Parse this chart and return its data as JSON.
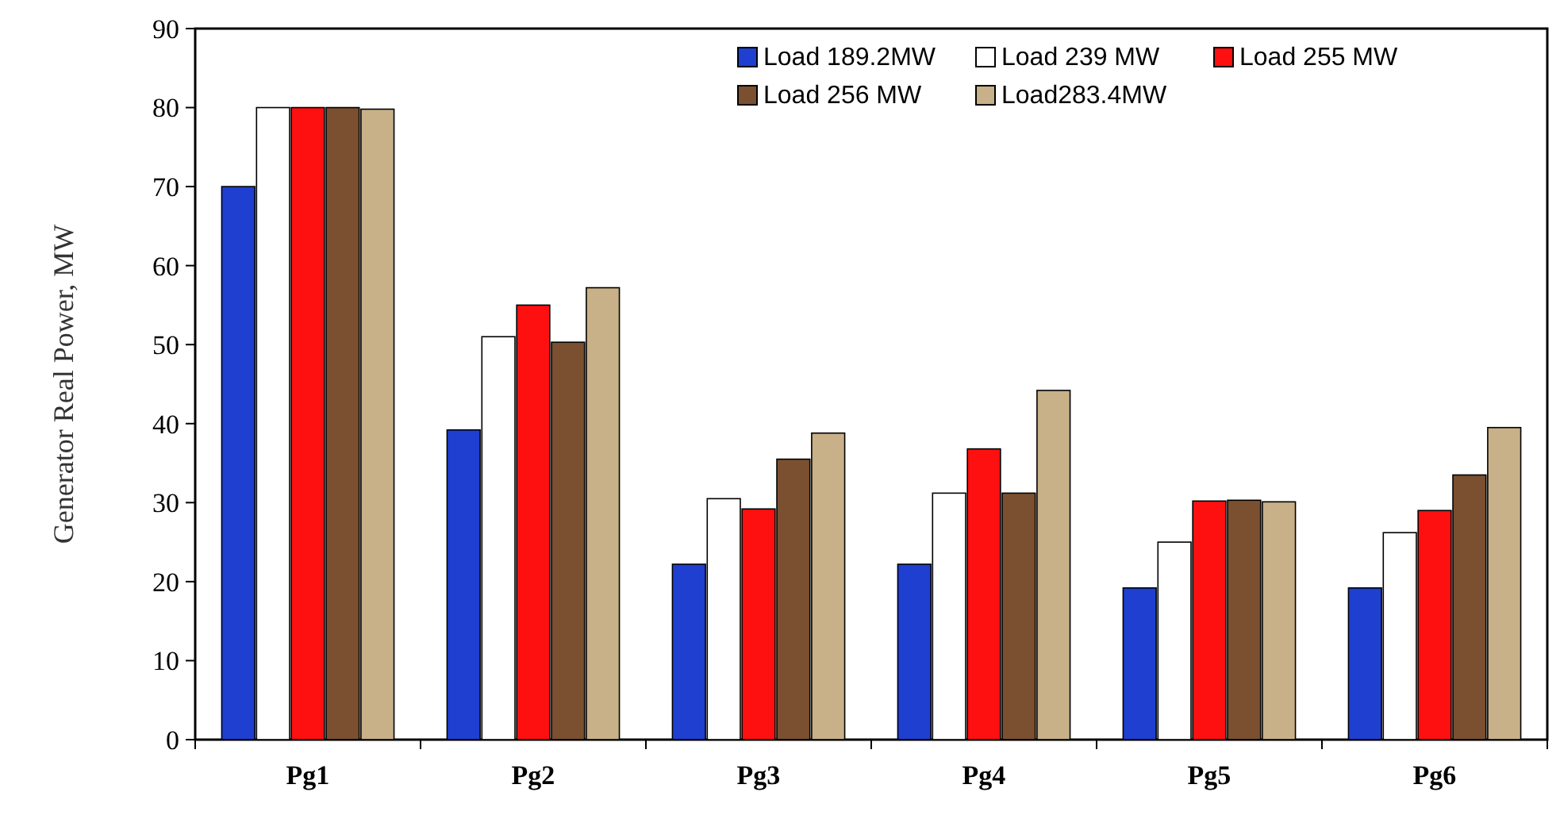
{
  "chart_data": {
    "type": "bar",
    "ylabel": "Generator Real Power, MW",
    "categories": [
      "Pg1",
      "Pg2",
      "Pg3",
      "Pg4",
      "Pg5",
      "Pg6"
    ],
    "series": [
      {
        "name": "Load 189.2MW",
        "color": "#1f3fd0",
        "values": [
          70,
          39.2,
          22.2,
          22.2,
          19.2,
          19.2
        ]
      },
      {
        "name": "Load 239 MW",
        "color": "#ffffff",
        "values": [
          80,
          51,
          30.5,
          31.2,
          25,
          26.2
        ]
      },
      {
        "name": "Load 255 MW",
        "color": "#ff1010",
        "values": [
          80,
          55,
          29.2,
          36.8,
          30.2,
          29
        ]
      },
      {
        "name": "Load 256 MW",
        "color": "#7a5030",
        "values": [
          80,
          50.3,
          35.5,
          31.2,
          30.3,
          33.5
        ]
      },
      {
        "name": "Load283.4MW",
        "color": "#c8b088",
        "values": [
          79.8,
          57.2,
          38.8,
          44.2,
          30.1,
          39.5
        ]
      }
    ],
    "ylim": [
      0,
      90
    ],
    "yticks": [
      0,
      10,
      20,
      30,
      40,
      50,
      60,
      70,
      80,
      90
    ],
    "grid": false,
    "legend": "top right"
  }
}
